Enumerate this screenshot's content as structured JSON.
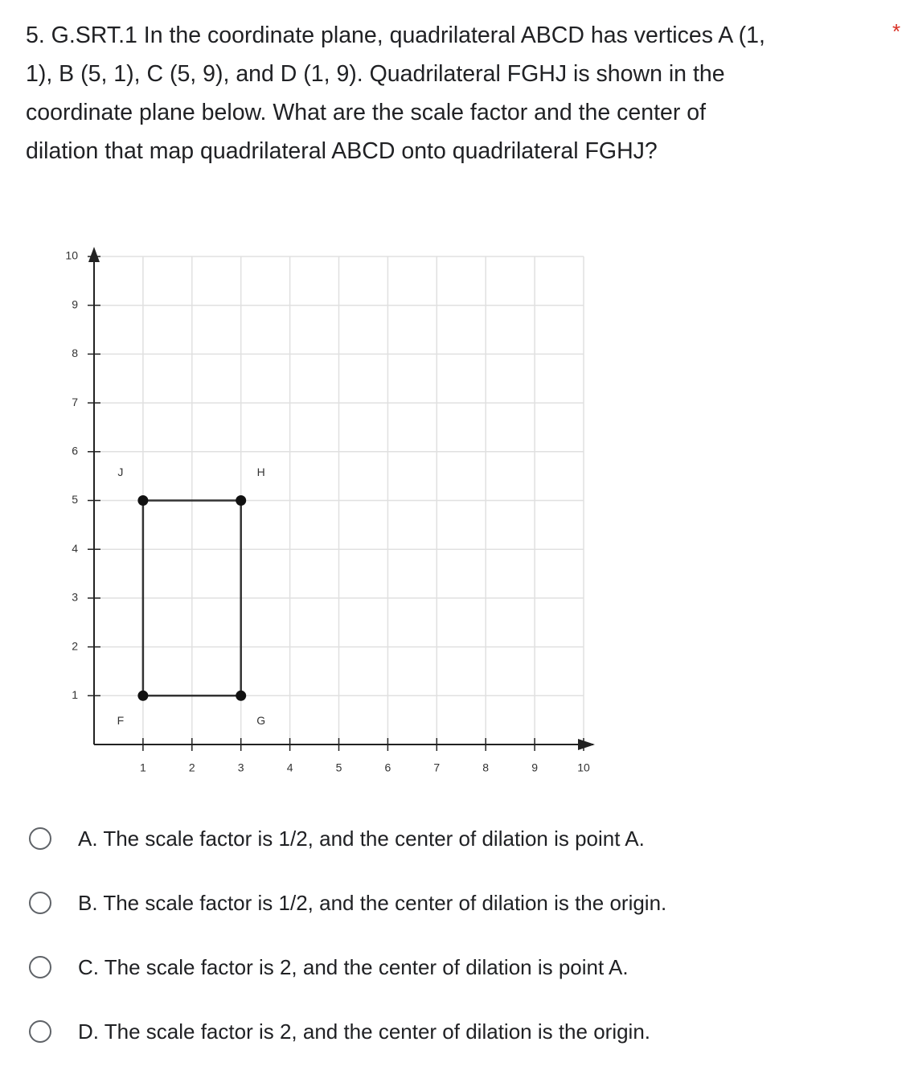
{
  "question": {
    "lines": [
      "5. G.SRT.1  In the coordinate plane, quadrilateral ABCD has vertices A (1,",
      "1), B (5, 1), C (5, 9), and D (1, 9). Quadrilateral FGHJ is shown in the",
      "coordinate plane below. What are the scale factor and the center of",
      "dilation that map quadrilateral ABCD onto quadrilateral FGHJ?"
    ],
    "required": "*"
  },
  "figure": {
    "type": "polygon",
    "xlim": [
      0,
      10
    ],
    "ylim": [
      0,
      10
    ],
    "xticks": [
      1,
      2,
      3,
      4,
      5,
      6,
      7,
      8,
      9,
      10
    ],
    "yticks": [
      1,
      2,
      3,
      4,
      5,
      6,
      7,
      8,
      9,
      10
    ],
    "grid": true,
    "points": [
      {
        "label": "F",
        "x": 1,
        "y": 1
      },
      {
        "label": "G",
        "x": 3,
        "y": 1
      },
      {
        "label": "H",
        "x": 3,
        "y": 5
      },
      {
        "label": "J",
        "x": 1,
        "y": 5
      }
    ]
  },
  "options": [
    "A. The scale factor is 1/2, and the center of dilation is point A.",
    "B. The scale factor is 1/2, and the center of dilation is the origin.",
    "C. The scale factor is 2, and the center of dilation is point A.",
    "D. The scale factor is 2, and the center of dilation is the origin."
  ]
}
